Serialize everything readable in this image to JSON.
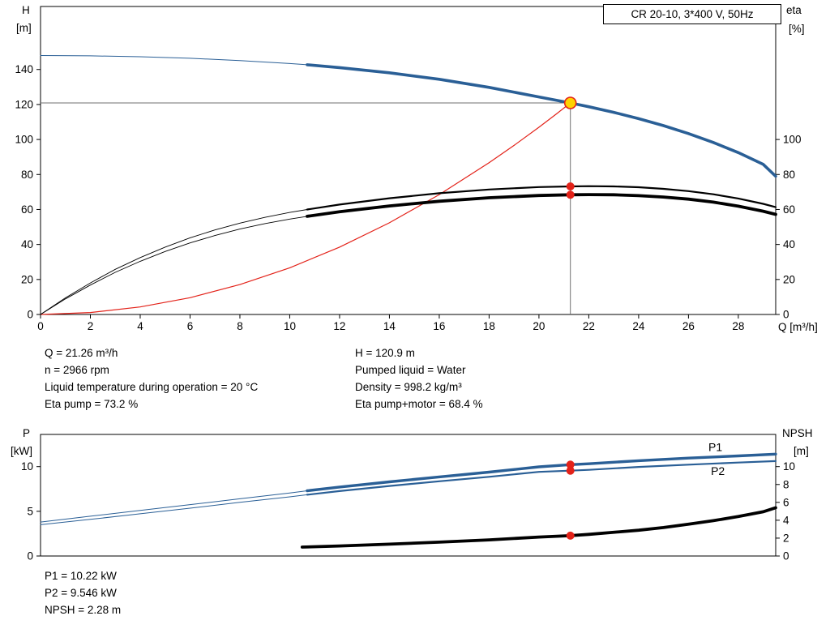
{
  "colors": {
    "curve_blue": "#2a5f96",
    "red": "#e32219",
    "duty_yellow": "#ffd200",
    "black": "#000000",
    "crosshair": "#6f6f6f"
  },
  "info": {
    "left": [
      "Q = 21.26 m³/h",
      "n = 2966 rpm",
      "Liquid temperature during operation = 20 °C",
      "Eta pump = 73.2 %"
    ],
    "right": [
      "H = 120.9 m",
      "Pumped liquid = Water",
      "Density = 998.2 kg/m³",
      "Eta pump+motor = 68.4 %"
    ]
  },
  "info_bottom": [
    "P1 = 10.22 kW",
    "P2 = 9.546 kW",
    "NPSH = 2.28 m"
  ],
  "chart_data": [
    {
      "type": "line",
      "title": "CR 20-10, 3*400 V, 50Hz",
      "xlabel": "Q [m³/h]",
      "ylabel_left": "H [m]",
      "ylabel_right": "eta [%]",
      "ylabel_left_lines": [
        "H",
        "[m]"
      ],
      "ylabel_right_lines": [
        "eta",
        "[%]"
      ],
      "xlim": [
        0,
        29.5
      ],
      "ylim_left": [
        0,
        176
      ],
      "ylim_right": [
        0,
        176
      ],
      "grid": false,
      "x_ticks": [
        0,
        2,
        4,
        6,
        8,
        10,
        12,
        14,
        16,
        18,
        20,
        22,
        24,
        26,
        28
      ],
      "x_tick_labels": true,
      "y_ticks_left": [
        0,
        20,
        40,
        60,
        80,
        100,
        120,
        140
      ],
      "y_ticks_right": [
        0,
        20,
        40,
        60,
        80,
        100
      ],
      "crosshair": {
        "x": 21.26,
        "y": 120.9,
        "color": "#6f6f6f"
      },
      "series": [
        {
          "name": "system-curve",
          "color": "#e32219",
          "width": 1.2,
          "points": [
            [
              0,
              0
            ],
            [
              2,
              1.1
            ],
            [
              4,
              4.3
            ],
            [
              6,
              9.6
            ],
            [
              8,
              17.1
            ],
            [
              10,
              26.7
            ],
            [
              12,
              38.5
            ],
            [
              14,
              52.4
            ],
            [
              16,
              68.5
            ],
            [
              18,
              86.7
            ],
            [
              19,
              96.6
            ],
            [
              20,
              107.0
            ],
            [
              20.7,
              114.6
            ],
            [
              21.26,
              120.9
            ]
          ]
        },
        {
          "name": "eta-pump",
          "color": "#000000",
          "width": 2.2,
          "thin_width": 0.9,
          "split_at": 10.7,
          "points": [
            [
              0,
              0
            ],
            [
              1,
              9.5
            ],
            [
              2,
              18
            ],
            [
              3,
              25.8
            ],
            [
              4,
              32.5
            ],
            [
              5,
              38.5
            ],
            [
              6,
              43.8
            ],
            [
              7,
              48.3
            ],
            [
              8,
              52.2
            ],
            [
              9,
              55.5
            ],
            [
              10,
              58.3
            ],
            [
              10.7,
              60
            ],
            [
              12,
              62.8
            ],
            [
              14,
              66.4
            ],
            [
              16,
              69.3
            ],
            [
              18,
              71.4
            ],
            [
              20,
              72.8
            ],
            [
              21.26,
              73.2
            ],
            [
              22,
              73.3
            ],
            [
              23,
              73.2
            ],
            [
              24,
              72.7
            ],
            [
              25,
              71.8
            ],
            [
              26,
              70.5
            ],
            [
              27,
              68.7
            ],
            [
              28,
              66.3
            ],
            [
              29,
              63.2
            ],
            [
              29.5,
              61.3
            ]
          ]
        },
        {
          "name": "eta-pump-motor",
          "color": "#000000",
          "width": 3.8,
          "thin_width": 0.9,
          "split_at": 10.7,
          "points": [
            [
              0,
              0
            ],
            [
              1,
              8.9
            ],
            [
              2,
              16.8
            ],
            [
              3,
              24.1
            ],
            [
              4,
              30.4
            ],
            [
              5,
              36
            ],
            [
              6,
              40.9
            ],
            [
              7,
              45.1
            ],
            [
              8,
              48.8
            ],
            [
              9,
              51.9
            ],
            [
              10,
              54.5
            ],
            [
              10.7,
              56.1
            ],
            [
              12,
              58.7
            ],
            [
              14,
              62
            ],
            [
              16,
              64.7
            ],
            [
              18,
              66.7
            ],
            [
              20,
              68
            ],
            [
              21.26,
              68.4
            ],
            [
              22,
              68.5
            ],
            [
              23,
              68.4
            ],
            [
              24,
              67.9
            ],
            [
              25,
              67.1
            ],
            [
              26,
              65.9
            ],
            [
              27,
              64.2
            ],
            [
              28,
              61.9
            ],
            [
              29,
              59
            ],
            [
              29.5,
              57.2
            ]
          ]
        },
        {
          "name": "H",
          "color": "#2a5f96",
          "width": 3.6,
          "thin_width": 1,
          "split_at": 10.7,
          "points": [
            [
              0,
              148
            ],
            [
              2,
              147.8
            ],
            [
              4,
              147.3
            ],
            [
              6,
              146.4
            ],
            [
              8,
              145.1
            ],
            [
              10,
              143.4
            ],
            [
              10.7,
              142.7
            ],
            [
              12,
              141.1
            ],
            [
              14,
              138.1
            ],
            [
              16,
              134.4
            ],
            [
              18,
              129.8
            ],
            [
              20,
              124.3
            ],
            [
              21.26,
              120.9
            ],
            [
              22,
              118.7
            ],
            [
              23,
              115.5
            ],
            [
              24,
              111.9
            ],
            [
              25,
              107.9
            ],
            [
              26,
              103.4
            ],
            [
              27,
              98.3
            ],
            [
              28,
              92.5
            ],
            [
              29,
              85.8
            ],
            [
              29.5,
              79
            ]
          ]
        }
      ],
      "markers": [
        {
          "name": "eta-pump-point",
          "x": 21.26,
          "y": 73.2,
          "r": 5,
          "fill": "#e32219",
          "interactable": false
        },
        {
          "name": "eta-pump-motor-point",
          "x": 21.26,
          "y": 68.4,
          "r": 5,
          "fill": "#e32219",
          "interactable": false
        },
        {
          "name": "duty-point",
          "x": 21.26,
          "y": 120.9,
          "r": 7,
          "fill": "#ffd200",
          "stroke": "#e32219",
          "sw": 1.6,
          "interactable": true
        }
      ],
      "labels": []
    },
    {
      "type": "line",
      "title": "",
      "xlabel": "",
      "ylabel_left": "P [kW]",
      "ylabel_right": "NPSH [m]",
      "ylabel_left_lines": [
        "P",
        "[kW]"
      ],
      "ylabel_right_lines": [
        "NPSH",
        "[m]"
      ],
      "xlim": [
        0,
        29.5
      ],
      "ylim_left": [
        0,
        13.6
      ],
      "ylim_right": [
        0,
        13.6
      ],
      "grid": false,
      "x_ticks": [],
      "x_tick_labels": false,
      "y_ticks_left": [
        0,
        5,
        10
      ],
      "y_ticks_right": [
        0,
        2,
        4,
        6,
        8,
        10
      ],
      "series": [
        {
          "name": "P1",
          "color": "#2a5f96",
          "width": 3.4,
          "thin_width": 1,
          "split_at": 10.7,
          "points": [
            [
              0,
              3.8
            ],
            [
              2,
              4.45
            ],
            [
              4,
              5.1
            ],
            [
              6,
              5.75
            ],
            [
              8,
              6.4
            ],
            [
              10,
              7.05
            ],
            [
              10.7,
              7.3
            ],
            [
              12,
              7.72
            ],
            [
              14,
              8.3
            ],
            [
              16,
              8.85
            ],
            [
              18,
              9.38
            ],
            [
              20,
              9.97
            ],
            [
              21.26,
              10.22
            ],
            [
              22,
              10.32
            ],
            [
              24,
              10.66
            ],
            [
              26,
              10.95
            ],
            [
              28,
              11.2
            ],
            [
              29.5,
              11.4
            ]
          ]
        },
        {
          "name": "P2",
          "color": "#2a5f96",
          "width": 2.2,
          "thin_width": 1,
          "split_at": 10.7,
          "points": [
            [
              0,
              3.5
            ],
            [
              2,
              4.1
            ],
            [
              4,
              4.72
            ],
            [
              6,
              5.35
            ],
            [
              8,
              6
            ],
            [
              10,
              6.62
            ],
            [
              10.7,
              6.85
            ],
            [
              12,
              7.26
            ],
            [
              14,
              7.83
            ],
            [
              16,
              8.36
            ],
            [
              18,
              8.86
            ],
            [
              20,
              9.41
            ],
            [
              21.26,
              9.546
            ],
            [
              22,
              9.64
            ],
            [
              24,
              9.96
            ],
            [
              26,
              10.22
            ],
            [
              28,
              10.45
            ],
            [
              29.5,
              10.62
            ]
          ]
        },
        {
          "name": "NPSH",
          "color": "#000000",
          "width": 3.8,
          "points": [
            [
              10.5,
              1
            ],
            [
              12,
              1.12
            ],
            [
              14,
              1.32
            ],
            [
              16,
              1.55
            ],
            [
              18,
              1.8
            ],
            [
              20,
              2.12
            ],
            [
              21.26,
              2.28
            ],
            [
              22,
              2.42
            ],
            [
              24,
              2.88
            ],
            [
              25,
              3.18
            ],
            [
              26,
              3.55
            ],
            [
              27,
              3.95
            ],
            [
              28,
              4.42
            ],
            [
              29,
              4.95
            ],
            [
              29.5,
              5.4
            ]
          ]
        }
      ],
      "markers": [
        {
          "name": "p1-point",
          "x": 21.26,
          "y": 10.22,
          "r": 5,
          "fill": "#e32219",
          "interactable": false
        },
        {
          "name": "p2-point",
          "x": 21.26,
          "y": 9.546,
          "r": 5,
          "fill": "#e32219",
          "interactable": false
        },
        {
          "name": "npsh-point",
          "x": 21.26,
          "y": 2.28,
          "r": 5,
          "fill": "#e32219",
          "interactable": false
        }
      ],
      "labels": [
        {
          "text": "P1",
          "x": 26.8,
          "y": 11.75,
          "color": "#2a5f96"
        },
        {
          "text": "P2",
          "x": 26.9,
          "y": 9.05,
          "color": "#2a5f96"
        }
      ]
    }
  ]
}
